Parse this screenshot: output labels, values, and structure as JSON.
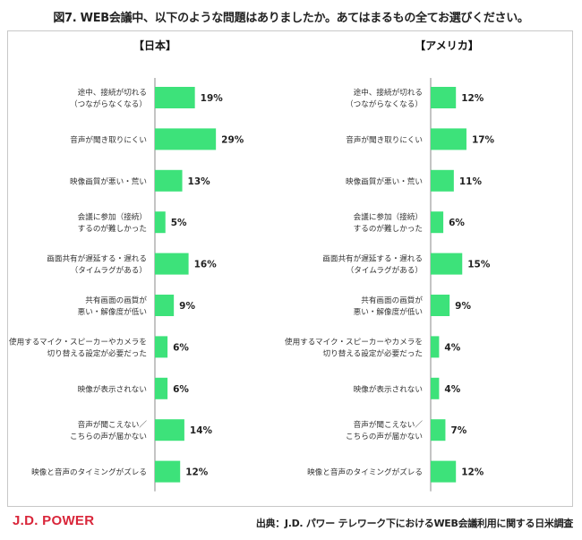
{
  "title": "図7. WEB会議中、以下のような問題はありましたか。あてはまるもの全てお選びください。",
  "logo": "J.D. POWER",
  "source": "出典：J.D. パワー テレワーク下におけるWEB会議利用に関する日米調査",
  "colors": {
    "bar": "#3de27a",
    "axis": "#888888",
    "logo": "#d9263a"
  },
  "chart_data": [
    {
      "type": "bar",
      "orientation": "horizontal",
      "title": "【日本】",
      "unit": "%",
      "categories": [
        [
          "途中、接続が切れる",
          "（つながらなくなる）"
        ],
        [
          "音声が聞き取りにくい"
        ],
        [
          "映像画質が悪い・荒い"
        ],
        [
          "会議に参加（接続）",
          "するのが難しかった"
        ],
        [
          "画面共有が遅延する・遅れる",
          "（タイムラグがある）"
        ],
        [
          "共有画面の画質が",
          "悪い・解像度が低い"
        ],
        [
          "使用するマイク・スピーカーやカメラを",
          "切り替える設定が必要だった"
        ],
        [
          "映像が表示されない"
        ],
        [
          "音声が聞こえない／",
          "こちらの声が届かない"
        ],
        [
          "映像と音声のタイミングがズレる"
        ]
      ],
      "values": [
        19,
        29,
        13,
        5,
        16,
        9,
        6,
        6,
        14,
        12
      ]
    },
    {
      "type": "bar",
      "orientation": "horizontal",
      "title": "【アメリカ】",
      "unit": "%",
      "categories": [
        [
          "途中、接続が切れる",
          "（つながらなくなる）"
        ],
        [
          "音声が聞き取りにくい"
        ],
        [
          "映像画質が悪い・荒い"
        ],
        [
          "会議に参加（接続）",
          "するのが難しかった"
        ],
        [
          "画面共有が遅延する・遅れる",
          "（タイムラグがある）"
        ],
        [
          "共有画面の画質が",
          "悪い・解像度が低い"
        ],
        [
          "使用するマイク・スピーカーやカメラを",
          "切り替える設定が必要だった"
        ],
        [
          "映像が表示されない"
        ],
        [
          "音声が聞こえない／",
          "こちらの声が届かない"
        ],
        [
          "映像と音声のタイミングがズレる"
        ]
      ],
      "values": [
        12,
        17,
        11,
        6,
        15,
        9,
        4,
        4,
        7,
        12
      ]
    }
  ]
}
